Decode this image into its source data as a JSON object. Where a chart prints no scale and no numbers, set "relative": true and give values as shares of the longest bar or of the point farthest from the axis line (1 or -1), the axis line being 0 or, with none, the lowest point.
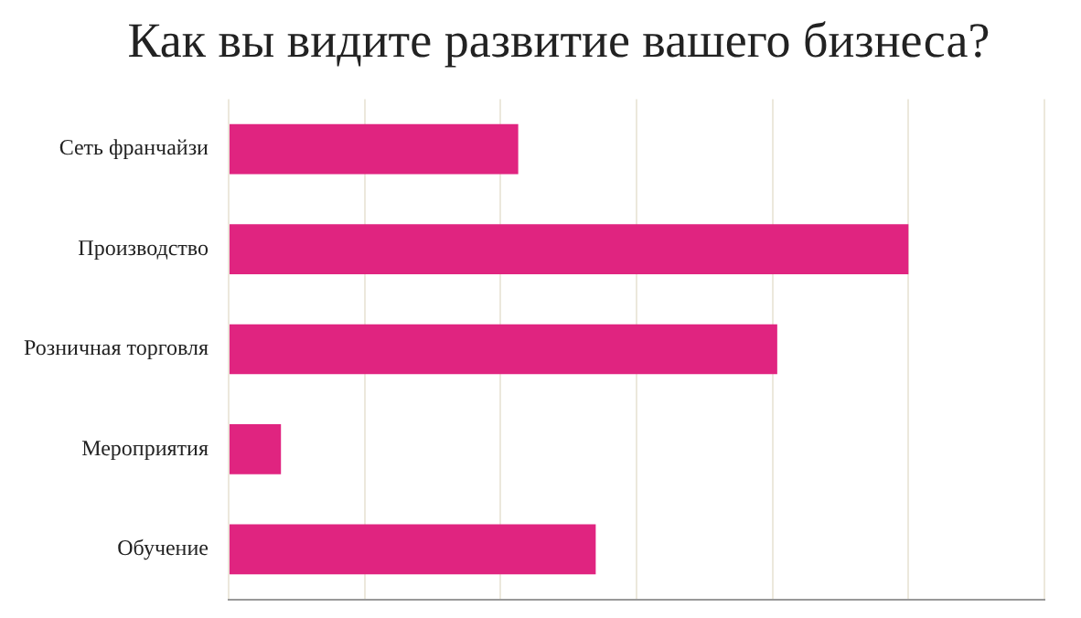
{
  "chart_data": {
    "type": "bar",
    "orientation": "horizontal",
    "relative": true,
    "title": "Как вы видите развитие вашего бизнеса?",
    "categories": [
      "Сеть франчайзи",
      "Производство",
      "Розничная торговля",
      "Мероприятия",
      "Обучение"
    ],
    "values": [
      0.426,
      1,
      0.807,
      0.077,
      0.54
    ],
    "color": "#e02480",
    "grid": "x",
    "legend": false
  }
}
